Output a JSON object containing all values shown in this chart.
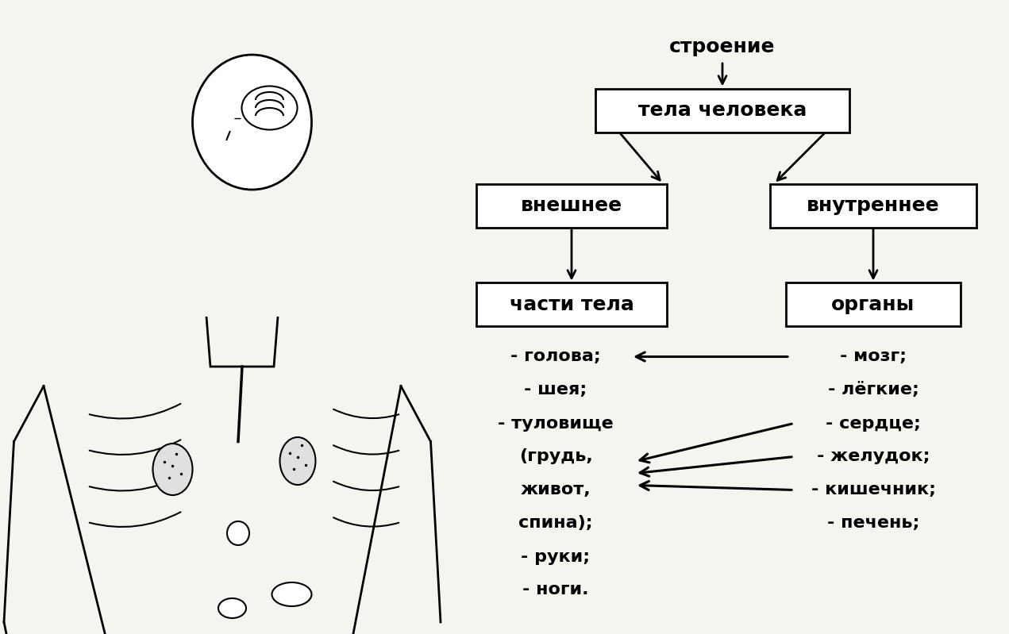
{
  "bg_color": "#f5f5f0",
  "title_text": "строение",
  "box1_text": "тела человека",
  "box2_text": "внешнее",
  "box3_text": "внутреннее",
  "box4_text": "части тела",
  "box5_text": "органы",
  "left_list": [
    "- голова;",
    "- шея;",
    "- туловище",
    "(грудь,",
    "живот,",
    "спина);",
    "- руки;",
    "- ноги."
  ],
  "right_list": [
    "- мозг;",
    "- лёгкие;",
    "- сердце;",
    "- желудок;",
    "- кишечник;",
    "- печень;"
  ],
  "font_size_box": 18,
  "font_size_title": 18,
  "font_size_list": 16
}
